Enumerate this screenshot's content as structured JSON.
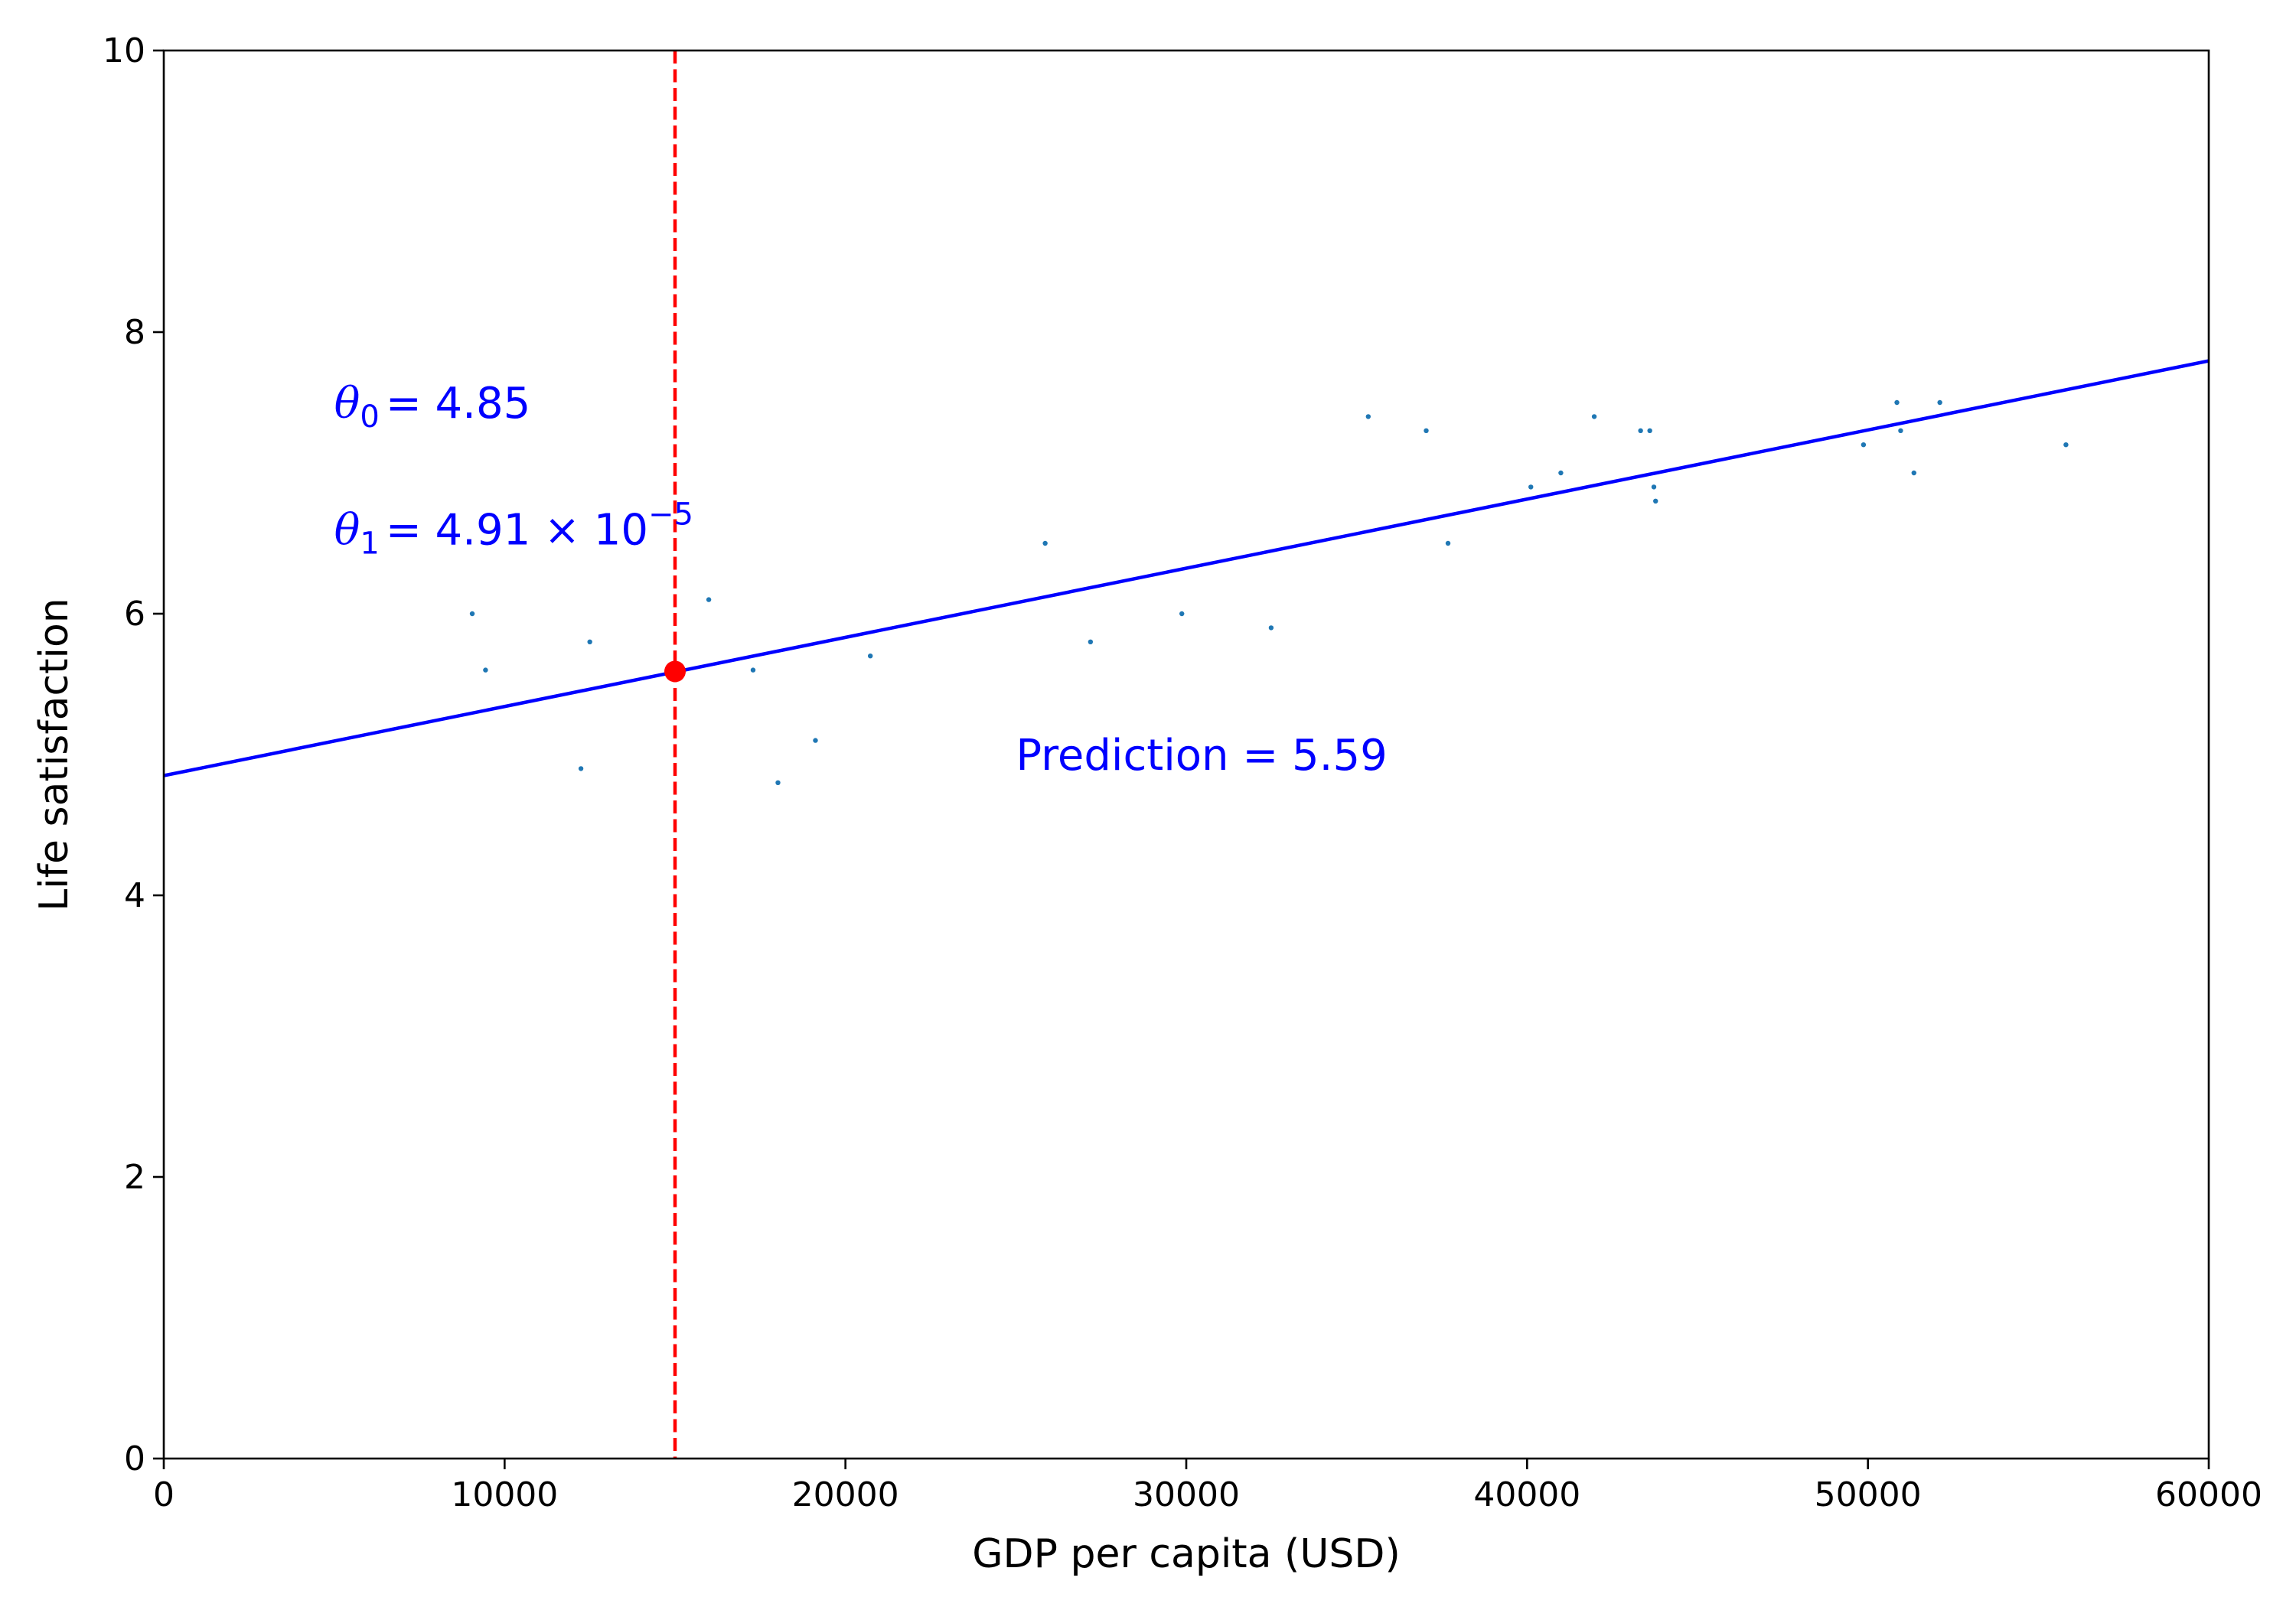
{
  "chart_data": {
    "type": "scatter",
    "title": "",
    "xlabel": "GDP per capita (USD)",
    "ylabel": "Life satisfaction",
    "xlim": [
      0,
      60000
    ],
    "ylim": [
      0,
      10
    ],
    "xticks": [
      "0",
      "10000",
      "20000",
      "30000",
      "40000",
      "50000",
      "60000"
    ],
    "yticks": [
      "0",
      "2",
      "4",
      "6",
      "8",
      "10"
    ],
    "grid": false,
    "points": {
      "color": "#1f77b4",
      "x": [
        9050,
        9440,
        12240,
        12500,
        15990,
        17290,
        18020,
        19120,
        20730,
        25860,
        27190,
        29870,
        32490,
        35340,
        37040,
        37680,
        40110,
        40990,
        41970,
        43330,
        43600,
        43720,
        43770,
        49870,
        50850,
        50960,
        51350,
        52110,
        55810
      ],
      "y": [
        6.0,
        5.6,
        4.9,
        5.8,
        6.1,
        5.6,
        4.8,
        5.1,
        5.7,
        6.5,
        5.8,
        6.0,
        5.9,
        7.4,
        7.3,
        6.5,
        6.9,
        7.0,
        7.4,
        7.3,
        7.3,
        6.9,
        6.8,
        7.2,
        7.5,
        7.3,
        7.0,
        7.5,
        7.2
      ]
    },
    "fit_line": {
      "color": "#0000ff",
      "x": [
        0,
        60000
      ],
      "y": [
        4.85,
        7.796
      ]
    },
    "vertical_line": {
      "color": "#ff0000",
      "x": 15000,
      "style": "dashed"
    },
    "prediction_point": {
      "color": "#ff0000",
      "x": 15000,
      "y": 5.59
    },
    "annotations": {
      "theta0": {
        "symbol": "θ",
        "subscript": "0",
        "value": "= 4.85",
        "x": 5000,
        "y": 7.5
      },
      "theta1": {
        "symbol": "θ",
        "subscript": "1",
        "value": "= 4.91 × 10",
        "exponent": "−5",
        "x": 5000,
        "y": 6.6
      },
      "prediction": {
        "text": "Prediction = 5.59",
        "x": 25000,
        "y": 5.0
      }
    },
    "annotation_color": "#0000ff"
  }
}
